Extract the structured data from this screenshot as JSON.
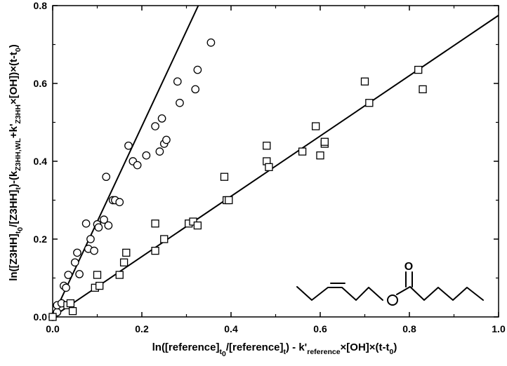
{
  "chart_data": {
    "type": "scatter",
    "title": "",
    "xlabel_parts": {
      "p1": "ln([reference]",
      "sub1a": "t",
      "sub1b": "0",
      "p2": "/[reference]",
      "sub2": "t",
      "p3": ") - k'",
      "sub3": "reference",
      "p4": "×[OH]×(t-t",
      "sub4": "0",
      "p5": ")"
    },
    "ylabel_parts": {
      "p1": "ln([Z3HH]",
      "sub1a": "t",
      "sub1b": "0",
      "p2": "/[Z3HH]",
      "sub2": "t",
      "p3": ")-(k",
      "sub3": "Z3HH,WL",
      "p4": "+k'",
      "sub4": "Z3HH",
      "p5": "×[OH])×(t-t",
      "sub5": "0",
      "p6": ")"
    },
    "xlim": [
      0.0,
      1.0
    ],
    "ylim": [
      0.0,
      0.8
    ],
    "xticks": [
      0.0,
      0.2,
      0.4,
      0.6,
      0.8,
      1.0
    ],
    "xtick_labels": [
      "0.0",
      "0.2",
      "0.4",
      "0.6",
      "0.8",
      "1.0"
    ],
    "yticks": [
      0.0,
      0.2,
      0.4,
      0.6,
      0.8
    ],
    "ytick_labels": [
      "0.0",
      "0.2",
      "0.4",
      "0.6",
      "0.8"
    ],
    "grid": false,
    "legend": "none",
    "series": [
      {
        "marker": "circle",
        "fit_slope": 2.45,
        "points": [
          [
            0.0,
            0.0
          ],
          [
            0.01,
            0.012
          ],
          [
            0.01,
            0.03
          ],
          [
            0.02,
            0.035
          ],
          [
            0.025,
            0.08
          ],
          [
            0.03,
            0.075
          ],
          [
            0.035,
            0.108
          ],
          [
            0.05,
            0.14
          ],
          [
            0.055,
            0.165
          ],
          [
            0.06,
            0.11
          ],
          [
            0.075,
            0.24
          ],
          [
            0.08,
            0.175
          ],
          [
            0.085,
            0.2
          ],
          [
            0.093,
            0.17
          ],
          [
            0.1,
            0.238
          ],
          [
            0.103,
            0.23
          ],
          [
            0.115,
            0.25
          ],
          [
            0.12,
            0.36
          ],
          [
            0.125,
            0.235
          ],
          [
            0.135,
            0.3
          ],
          [
            0.14,
            0.3
          ],
          [
            0.15,
            0.295
          ],
          [
            0.17,
            0.44
          ],
          [
            0.18,
            0.4
          ],
          [
            0.19,
            0.39
          ],
          [
            0.21,
            0.415
          ],
          [
            0.23,
            0.49
          ],
          [
            0.24,
            0.425
          ],
          [
            0.245,
            0.51
          ],
          [
            0.25,
            0.445
          ],
          [
            0.255,
            0.455
          ],
          [
            0.28,
            0.605
          ],
          [
            0.285,
            0.55
          ],
          [
            0.32,
            0.585
          ],
          [
            0.325,
            0.635
          ],
          [
            0.355,
            0.705
          ]
        ]
      },
      {
        "marker": "square",
        "fit_slope": 0.775,
        "points": [
          [
            0.0,
            0.0
          ],
          [
            0.033,
            0.03
          ],
          [
            0.04,
            0.035
          ],
          [
            0.045,
            0.015
          ],
          [
            0.095,
            0.075
          ],
          [
            0.1,
            0.108
          ],
          [
            0.105,
            0.08
          ],
          [
            0.15,
            0.108
          ],
          [
            0.16,
            0.14
          ],
          [
            0.165,
            0.165
          ],
          [
            0.23,
            0.24
          ],
          [
            0.23,
            0.17
          ],
          [
            0.25,
            0.2
          ],
          [
            0.305,
            0.24
          ],
          [
            0.315,
            0.245
          ],
          [
            0.325,
            0.235
          ],
          [
            0.385,
            0.36
          ],
          [
            0.39,
            0.3
          ],
          [
            0.395,
            0.3
          ],
          [
            0.48,
            0.44
          ],
          [
            0.48,
            0.4
          ],
          [
            0.485,
            0.385
          ],
          [
            0.56,
            0.425
          ],
          [
            0.59,
            0.49
          ],
          [
            0.6,
            0.415
          ],
          [
            0.61,
            0.445
          ],
          [
            0.61,
            0.45
          ],
          [
            0.7,
            0.605
          ],
          [
            0.71,
            0.55
          ],
          [
            0.82,
            0.635
          ],
          [
            0.83,
            0.585
          ]
        ]
      }
    ]
  },
  "structure": {
    "label_O": "O"
  }
}
